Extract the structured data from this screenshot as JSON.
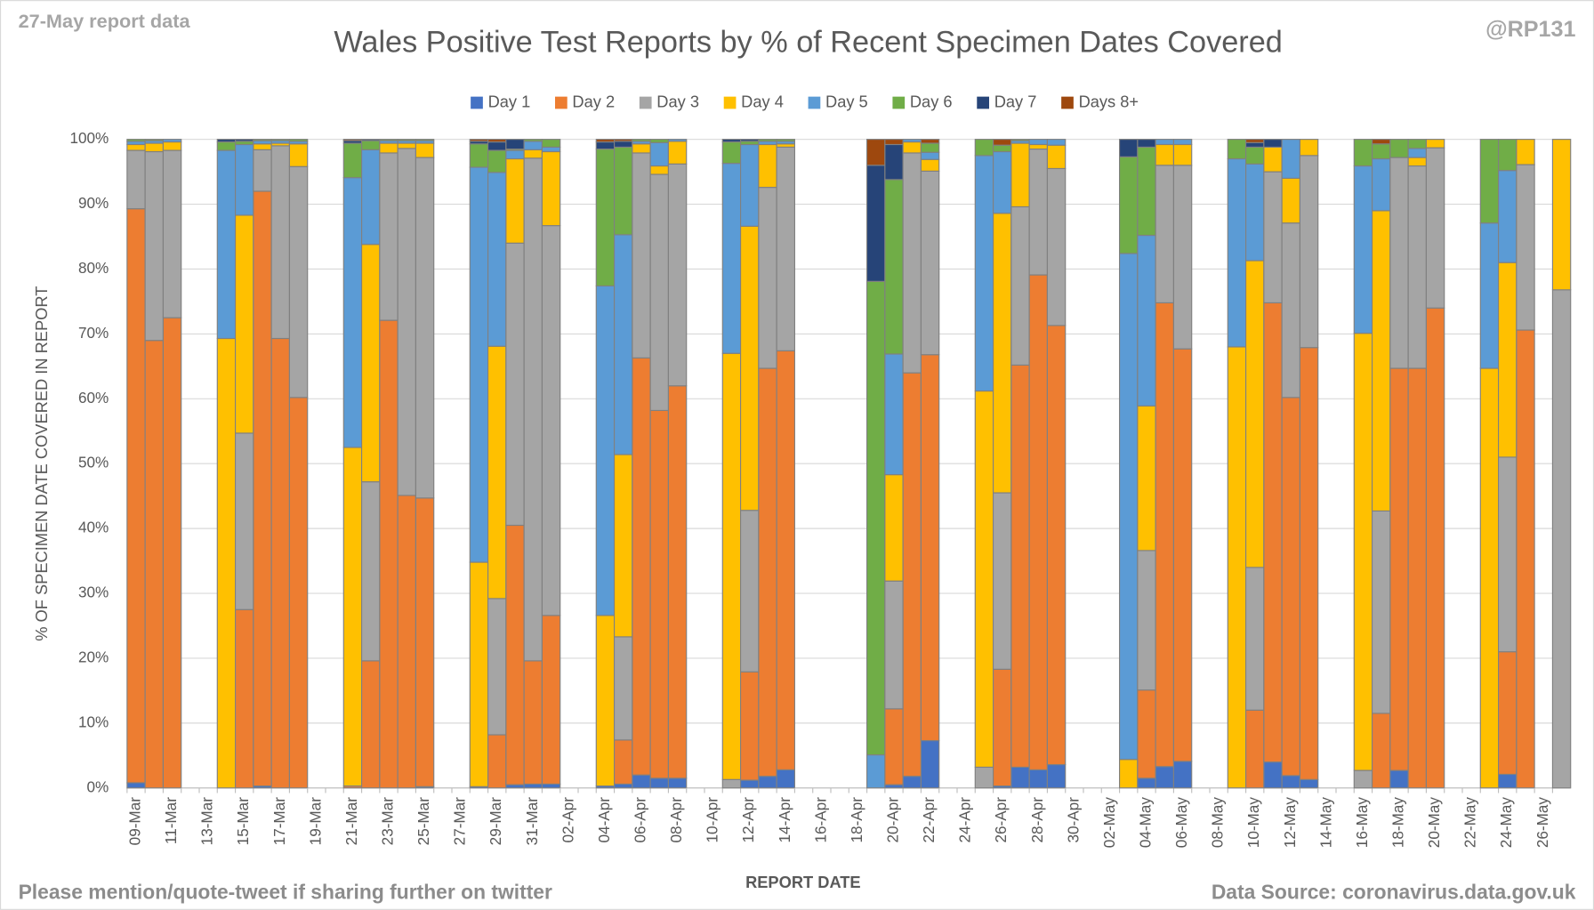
{
  "chart_data": {
    "type": "stacked_bar",
    "title": "Wales Positive Test Reports by % of Recent Specimen Dates Covered",
    "report_note": "27-May report data",
    "handle": "@RP131",
    "footer": "Please mention/quote-tweet if sharing further on twitter",
    "source": "Data Source: coronavirus.data.gov.uk",
    "xlabel": "REPORT DATE",
    "ylabel": "% OF SPECIMEN DATE COVERED IN REPORT",
    "ylim": [
      0,
      100
    ],
    "yticks": [
      {
        "value": 0,
        "label": "0%"
      },
      {
        "value": 10,
        "label": "10%"
      },
      {
        "value": 20,
        "label": "20%"
      },
      {
        "value": 30,
        "label": "30%"
      },
      {
        "value": 40,
        "label": "40%"
      },
      {
        "value": 50,
        "label": "50%"
      },
      {
        "value": 60,
        "label": "60%"
      },
      {
        "value": 70,
        "label": "70%"
      },
      {
        "value": 80,
        "label": "80%"
      },
      {
        "value": 90,
        "label": "90%"
      },
      {
        "value": 100,
        "label": "100%"
      }
    ],
    "grid": true,
    "legend": "top",
    "categories": [
      "09-Mar",
      null,
      "11-Mar",
      null,
      "13-Mar",
      null,
      "15-Mar",
      null,
      "17-Mar",
      null,
      "19-Mar",
      null,
      "21-Mar",
      null,
      "23-Mar",
      null,
      "25-Mar",
      null,
      "27-Mar",
      null,
      "29-Mar",
      null,
      "31-Mar",
      null,
      "02-Apr",
      null,
      "04-Apr",
      null,
      "06-Apr",
      null,
      "08-Apr",
      null,
      "10-Apr",
      null,
      "12-Apr",
      null,
      "14-Apr",
      null,
      "16-Apr",
      null,
      "18-Apr",
      null,
      "20-Apr",
      null,
      "22-Apr",
      null,
      "24-Apr",
      null,
      "26-Apr",
      null,
      "28-Apr",
      null,
      "30-Apr",
      null,
      "02-May",
      null,
      "04-May",
      null,
      "06-May",
      null,
      "08-May",
      null,
      "10-May",
      null,
      "12-May",
      null,
      "14-May",
      null,
      "16-May",
      null,
      "18-May",
      null,
      "20-May",
      null,
      "22-May",
      null,
      "24-May",
      null,
      "26-May",
      null
    ],
    "series": [
      {
        "name": "Day 1",
        "color": "#4472c4",
        "values": [
          0.8,
          0,
          0,
          null,
          null,
          0,
          0,
          0.3,
          0,
          0,
          null,
          null,
          0,
          0,
          0,
          0,
          0.2,
          null,
          null,
          0.2,
          0,
          0.5,
          0.6,
          0.6,
          null,
          null,
          0.3,
          0.6,
          2,
          1.5,
          1.5,
          null,
          null,
          0,
          1.2,
          1.8,
          2.8,
          null,
          null,
          null,
          null,
          0,
          0.5,
          1.8,
          7.3,
          null,
          null,
          0,
          0.3,
          3.2,
          2.8,
          3.6,
          null,
          null,
          null,
          0,
          1.5,
          3.3,
          4.1,
          null,
          null,
          0,
          0,
          4,
          1.9,
          1.3,
          null,
          null,
          0,
          0,
          2.7,
          0,
          0,
          null,
          null,
          0,
          2.1,
          0,
          null,
          0
        ]
      },
      {
        "name": "Day 2",
        "color": "#ed7d31",
        "values": [
          88.5,
          69,
          72.5,
          null,
          null,
          0,
          27.5,
          91.7,
          69.3,
          60.2,
          null,
          null,
          0.3,
          19.6,
          72.1,
          45.1,
          44.5,
          null,
          null,
          0,
          8.2,
          40,
          19,
          26,
          null,
          null,
          0,
          6.8,
          64.3,
          56.7,
          60.5,
          null,
          null,
          0,
          16.7,
          62.9,
          64.6,
          null,
          null,
          null,
          null,
          0,
          11.7,
          62.2,
          59.5,
          null,
          null,
          0,
          18,
          62,
          76.3,
          67.7,
          null,
          null,
          null,
          0,
          13.6,
          71.5,
          63.6,
          null,
          null,
          0,
          12,
          70.8,
          58.3,
          66.6,
          null,
          null,
          0,
          11.5,
          62,
          64.7,
          74,
          null,
          null,
          0,
          18.9,
          70.6,
          null,
          0
        ]
      },
      {
        "name": "Day 3",
        "color": "#a5a5a5",
        "values": [
          9,
          29.1,
          25.8,
          null,
          null,
          0,
          27.2,
          6.4,
          29.7,
          35.6,
          null,
          null,
          0,
          27.6,
          25.8,
          53.5,
          52.5,
          null,
          null,
          0,
          21,
          43.5,
          77.5,
          60.1,
          null,
          null,
          0,
          15.9,
          31.6,
          36.4,
          34.2,
          null,
          null,
          1.3,
          24.9,
          27.9,
          31.4,
          null,
          null,
          null,
          null,
          0,
          19.7,
          33.9,
          28.3,
          null,
          null,
          3.2,
          27.2,
          24.4,
          19.4,
          24.2,
          null,
          null,
          null,
          0,
          21.5,
          21.2,
          28.3,
          null,
          null,
          0,
          22,
          20.2,
          26.9,
          29.6,
          null,
          null,
          2.7,
          31.2,
          32.5,
          31.2,
          24.7,
          null,
          null,
          0,
          30,
          25.5,
          null,
          76.8
        ]
      },
      {
        "name": "Day 4",
        "color": "#ffc000",
        "values": [
          0.9,
          1.3,
          1.3,
          null,
          null,
          69.3,
          33.6,
          0.9,
          0.4,
          3.5,
          null,
          null,
          52.2,
          36.6,
          1.5,
          0.8,
          2.2,
          null,
          null,
          34.6,
          38.9,
          13,
          1.3,
          11.4,
          null,
          null,
          26.3,
          28.1,
          1.4,
          1.3,
          3.5,
          null,
          null,
          65.7,
          43.8,
          6.6,
          0.5,
          null,
          null,
          null,
          null,
          0,
          16.4,
          1.7,
          1.8,
          null,
          null,
          58,
          43.1,
          9.8,
          0.7,
          3.6,
          null,
          null,
          null,
          4.4,
          22.3,
          3.2,
          3.2,
          null,
          null,
          68,
          47.3,
          3.8,
          6.9,
          2.5,
          null,
          null,
          67.4,
          46.3,
          0,
          1.3,
          1.3,
          null,
          null,
          64.7,
          30,
          3.9,
          null,
          23.2
        ]
      },
      {
        "name": "Day 5",
        "color": "#5b9bd5",
        "values": [
          0.5,
          0.4,
          0.4,
          null,
          null,
          29,
          10.9,
          0.5,
          0.4,
          0.4,
          null,
          null,
          41.6,
          14.6,
          0.4,
          0.4,
          0.4,
          null,
          null,
          60.9,
          26.8,
          1.3,
          1.3,
          0.7,
          null,
          null,
          50.8,
          33.9,
          0.4,
          3.6,
          0.3,
          null,
          null,
          29.3,
          12.6,
          0.5,
          0.4,
          null,
          null,
          null,
          null,
          5.1,
          18.6,
          0.4,
          1.1,
          null,
          null,
          36.3,
          9.5,
          0.4,
          0.8,
          0.9,
          null,
          null,
          null,
          78,
          26.3,
          0.8,
          0.8,
          null,
          null,
          29,
          14.9,
          0,
          6,
          0,
          null,
          null,
          25.8,
          8,
          0,
          1.4,
          0,
          null,
          null,
          22.4,
          14.2,
          0,
          null,
          0
        ]
      },
      {
        "name": "Day 6",
        "color": "#70ad47",
        "values": [
          0.3,
          0.2,
          0,
          null,
          null,
          1.3,
          0.5,
          0.2,
          0.2,
          0.3,
          null,
          null,
          5.3,
          1.4,
          0.2,
          0.2,
          0.2,
          null,
          null,
          3.6,
          3.4,
          0.2,
          0.3,
          1.2,
          null,
          null,
          21.1,
          13.5,
          0.3,
          0.5,
          0,
          null,
          null,
          3.3,
          0.5,
          0.3,
          0.3,
          null,
          null,
          null,
          null,
          73,
          26.9,
          0,
          1.4,
          null,
          null,
          2.5,
          1,
          0.2,
          0,
          0,
          null,
          null,
          null,
          14.9,
          13.6,
          0,
          0,
          null,
          null,
          3,
          2.6,
          0,
          0,
          0,
          null,
          null,
          4.1,
          2.3,
          2.8,
          1.4,
          0,
          null,
          null,
          12.9,
          4.8,
          0,
          null,
          0
        ]
      },
      {
        "name": "Day 7",
        "color": "#264478",
        "values": [
          0,
          0,
          0,
          null,
          null,
          0.4,
          0.3,
          0,
          0,
          0,
          null,
          null,
          0.4,
          0.2,
          0,
          0,
          0,
          null,
          null,
          0.4,
          1.3,
          1.5,
          0,
          0,
          null,
          null,
          1.1,
          0.9,
          0,
          0,
          0,
          null,
          null,
          0.4,
          0.3,
          0,
          0,
          null,
          null,
          null,
          null,
          17.9,
          5.4,
          0,
          0,
          null,
          null,
          0,
          0,
          0,
          0,
          0,
          null,
          null,
          null,
          2.7,
          1.2,
          0,
          0,
          null,
          null,
          0,
          0.7,
          1.2,
          0,
          0,
          null,
          null,
          0,
          0,
          0,
          0,
          0,
          null,
          null,
          0,
          0,
          0,
          null,
          0
        ]
      },
      {
        "name": "Days 8+",
        "color": "#9e480e",
        "values": [
          0,
          0,
          0,
          null,
          null,
          0,
          0,
          0,
          0,
          0,
          null,
          null,
          0.2,
          0,
          0,
          0,
          0,
          null,
          null,
          0.3,
          0.4,
          0,
          0,
          0,
          null,
          null,
          0.4,
          0.3,
          0,
          0,
          0,
          null,
          null,
          0,
          0,
          0,
          0,
          null,
          null,
          null,
          null,
          4,
          0.8,
          0,
          0.6,
          null,
          null,
          0,
          0.9,
          0,
          0,
          0,
          null,
          null,
          null,
          0,
          0,
          0,
          0,
          null,
          null,
          0,
          0.5,
          0,
          0,
          0,
          null,
          null,
          0,
          0.7,
          0,
          0,
          0,
          null,
          null,
          0,
          0,
          0,
          null,
          0
        ]
      }
    ]
  }
}
